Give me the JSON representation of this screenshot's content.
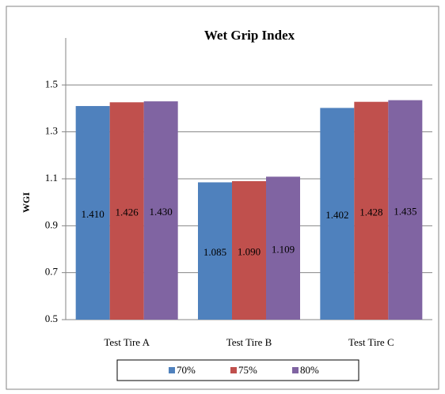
{
  "chart_data": {
    "type": "bar",
    "title": "Wet Grip Index",
    "y_label": "WGI",
    "categories": [
      "Test Tire A",
      "Test Tire B",
      "Test Tire C"
    ],
    "series": [
      {
        "name": "70%",
        "color": "#4f81bd",
        "values": [
          1.41,
          1.085,
          1.402
        ],
        "value_labels": [
          "1.410",
          "1.085",
          "1.402"
        ]
      },
      {
        "name": "75%",
        "color": "#c0504d",
        "values": [
          1.426,
          1.09,
          1.428
        ],
        "value_labels": [
          "1.426",
          "1.090",
          "1.428"
        ]
      },
      {
        "name": "80%",
        "color": "#8064a2",
        "values": [
          1.43,
          1.109,
          1.435
        ],
        "value_labels": [
          "1.430",
          "1.109",
          "1.435"
        ]
      }
    ],
    "ylim": [
      0.5,
      1.7
    ],
    "yticks": [
      0.5,
      0.7,
      0.9,
      1.1,
      1.3,
      1.5
    ],
    "grid": true,
    "legend": "bottom"
  }
}
